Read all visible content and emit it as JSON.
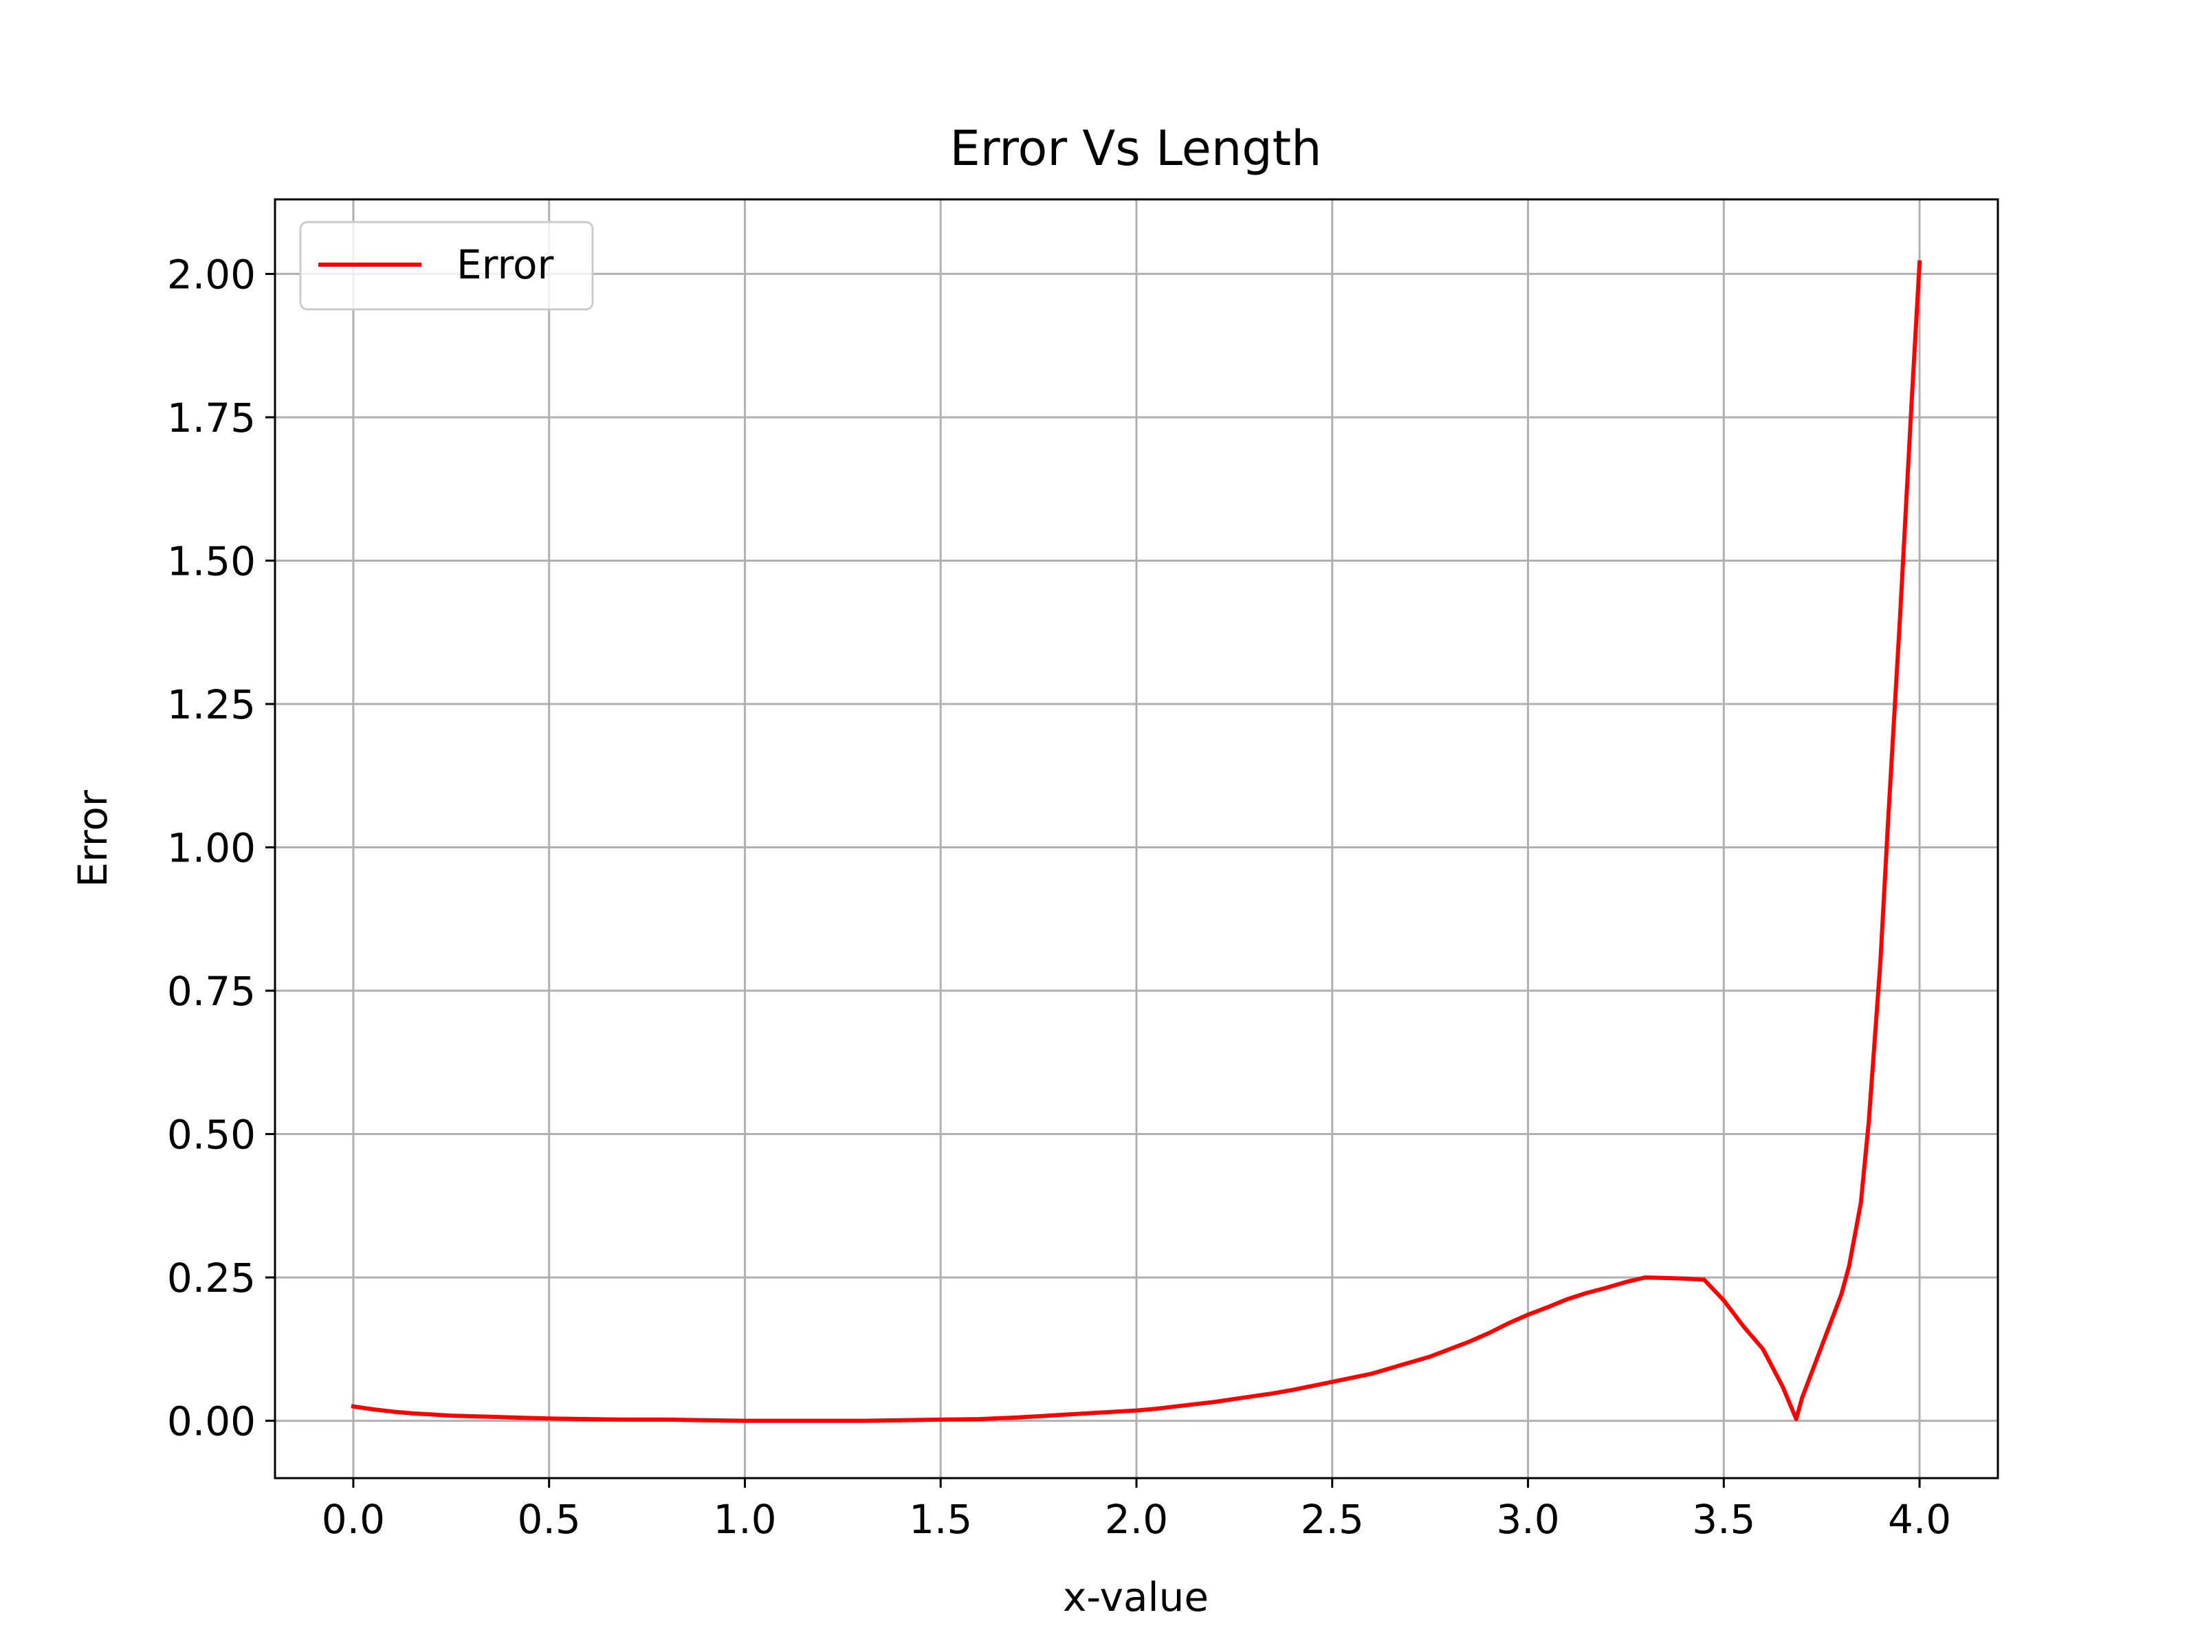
{
  "chart_data": {
    "type": "line",
    "title": "Error Vs Length",
    "xlabel": "x-value",
    "ylabel": "Error",
    "xlim": [
      -0.2,
      4.2
    ],
    "ylim": [
      -0.1,
      2.13
    ],
    "xticks": [
      0.0,
      0.5,
      1.0,
      1.5,
      2.0,
      2.5,
      3.0,
      3.5,
      4.0
    ],
    "xtick_labels": [
      "0.0",
      "0.5",
      "1.0",
      "1.5",
      "2.0",
      "2.5",
      "3.0",
      "3.5",
      "4.0"
    ],
    "yticks": [
      0.0,
      0.25,
      0.5,
      0.75,
      1.0,
      1.25,
      1.5,
      1.75,
      2.0
    ],
    "ytick_labels": [
      "0.00",
      "0.25",
      "0.50",
      "0.75",
      "1.00",
      "1.25",
      "1.50",
      "1.75",
      "2.00"
    ],
    "grid": true,
    "legend_position": "upper-left",
    "series": [
      {
        "name": "Error",
        "color": "#ff0000",
        "x": [
          0.0,
          0.05,
          0.1,
          0.15,
          0.2,
          0.25,
          0.3,
          0.4,
          0.5,
          0.6,
          0.7,
          0.8,
          0.9,
          1.0,
          1.1,
          1.2,
          1.3,
          1.4,
          1.5,
          1.6,
          1.7,
          1.8,
          1.9,
          2.0,
          2.05,
          2.1,
          2.2,
          2.3,
          2.35,
          2.4,
          2.5,
          2.6,
          2.65,
          2.7,
          2.75,
          2.8,
          2.85,
          2.9,
          2.95,
          3.0,
          3.05,
          3.1,
          3.15,
          3.2,
          3.25,
          3.3,
          3.35,
          3.4,
          3.45,
          3.5,
          3.55,
          3.6,
          3.65,
          3.685,
          3.7,
          3.75,
          3.8,
          3.82,
          3.85,
          3.87,
          3.9,
          3.92,
          3.95,
          3.98,
          4.0
        ],
        "y": [
          0.025,
          0.02,
          0.016,
          0.013,
          0.011,
          0.009,
          0.008,
          0.006,
          0.004,
          0.003,
          0.002,
          0.002,
          0.001,
          0.0,
          0.0,
          0.0,
          0.0,
          0.001,
          0.002,
          0.003,
          0.006,
          0.01,
          0.014,
          0.018,
          0.021,
          0.025,
          0.033,
          0.043,
          0.048,
          0.054,
          0.068,
          0.082,
          0.092,
          0.102,
          0.112,
          0.125,
          0.138,
          0.153,
          0.17,
          0.185,
          0.198,
          0.212,
          0.223,
          0.232,
          0.242,
          0.25,
          0.249,
          0.248,
          0.246,
          0.21,
          0.165,
          0.125,
          0.06,
          0.003,
          0.04,
          0.13,
          0.22,
          0.27,
          0.38,
          0.52,
          0.8,
          1.05,
          1.4,
          1.78,
          2.02
        ]
      }
    ]
  }
}
